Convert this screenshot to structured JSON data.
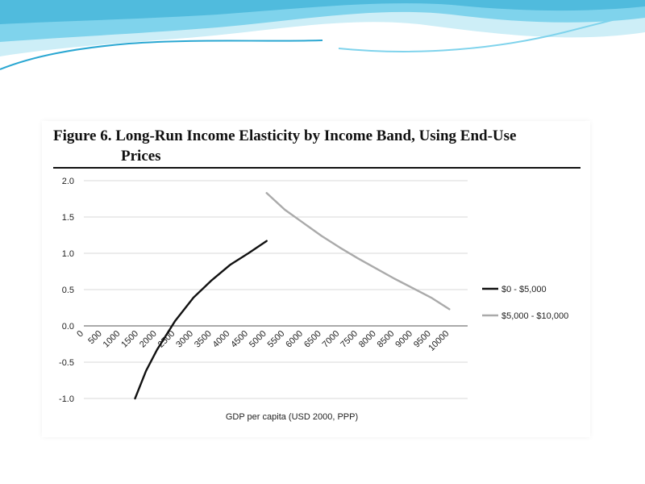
{
  "figure": {
    "title_line1": "Figure 6. Long-Run Income Elasticity by Income Band, Using End-Use",
    "title_line2": "Prices"
  },
  "colors": {
    "banner_light": "#cdeef7",
    "banner_mid": "#7fd3ec",
    "banner_dark": "#2aa7d2",
    "series_dark": "#111111",
    "series_light": "#aaaaaa",
    "grid": "#d9d9d9"
  },
  "chart_data": {
    "type": "line",
    "title": "Figure 6. Long-Run Income Elasticity by Income Band, Using End-Use Prices",
    "xlabel": "GDP per capita (USD 2000, PPP)",
    "ylabel": "",
    "x_ticks": [
      "0",
      "500",
      "1000",
      "1500",
      "2000",
      "2500",
      "3000",
      "3500",
      "4000",
      "4500",
      "5000",
      "5500",
      "6000",
      "6500",
      "7000",
      "7500",
      "8000",
      "8500",
      "9000",
      "9500",
      "10000"
    ],
    "y_ticks": [
      "2.0",
      "1.5",
      "1.0",
      "0.5",
      "0.0",
      "-0.5",
      "-1.0"
    ],
    "xlim": [
      0,
      10500
    ],
    "ylim": [
      -1.0,
      2.0
    ],
    "grid": "horizontal",
    "legend_position": "right",
    "series": [
      {
        "name": "$0 - $5,000",
        "color": "#111111",
        "x": [
          1400,
          1700,
          2000,
          2500,
          3000,
          3500,
          4000,
          4500,
          5000
        ],
        "y": [
          -1.0,
          -0.62,
          -0.33,
          0.07,
          0.39,
          0.63,
          0.84,
          1.0,
          1.17
        ]
      },
      {
        "name": "$5,000 - $10,000",
        "color": "#aaaaaa",
        "x": [
          5000,
          5500,
          6000,
          6500,
          7000,
          7500,
          8000,
          8500,
          9000,
          9500,
          10000
        ],
        "y": [
          1.83,
          1.6,
          1.42,
          1.24,
          1.08,
          0.93,
          0.79,
          0.65,
          0.52,
          0.39,
          0.23
        ]
      }
    ]
  }
}
